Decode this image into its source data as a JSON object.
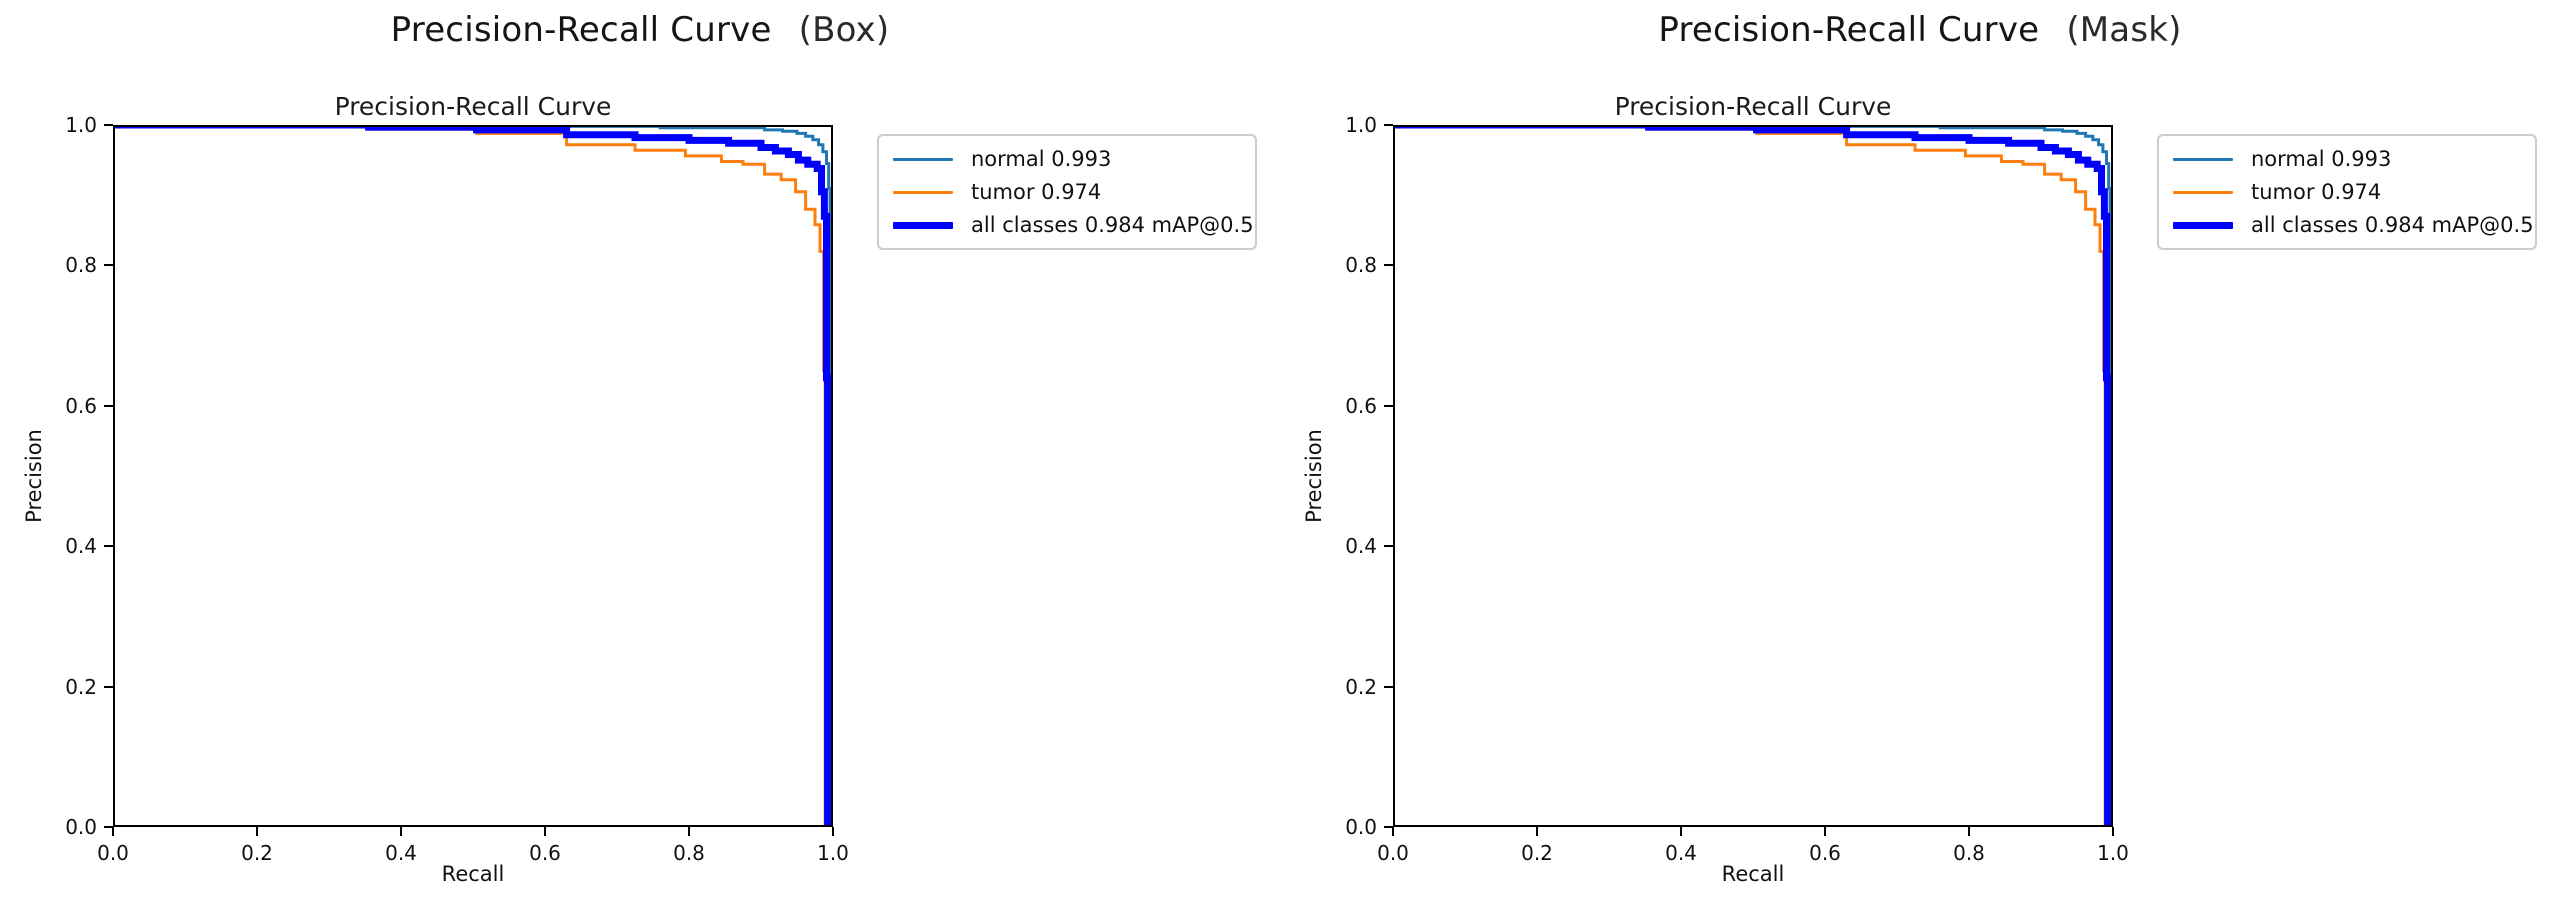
{
  "page": {
    "background": "#ffffff",
    "text_color": "#111111",
    "spine_color": "#000000",
    "legend_border_color": "#cccccc"
  },
  "chart_data": [
    {
      "type": "line",
      "suptitle": "Precision-Recall Curve",
      "variant": "(Box)",
      "title": "Precision-Recall Curve",
      "xlabel": "Recall",
      "ylabel": "Precision",
      "xlim": [
        0.0,
        1.0
      ],
      "ylim": [
        0.0,
        1.0
      ],
      "xticks": [
        "0.0",
        "0.2",
        "0.4",
        "0.6",
        "0.8",
        "1.0"
      ],
      "yticks": [
        "0.0",
        "0.2",
        "0.4",
        "0.6",
        "0.8",
        "1.0"
      ],
      "grid": false,
      "legend_position": "outside-upper-right",
      "series": [
        {
          "name": "normal",
          "legend": "normal 0.993",
          "ap": 0.993,
          "color": "#1f77b4",
          "width": 3,
          "points": [
            [
              0.0,
              1.0
            ],
            [
              0.5,
              1.0
            ],
            [
              0.5,
              0.998
            ],
            [
              0.76,
              0.998
            ],
            [
              0.76,
              0.996
            ],
            [
              0.905,
              0.996
            ],
            [
              0.905,
              0.993
            ],
            [
              0.93,
              0.993
            ],
            [
              0.93,
              0.991
            ],
            [
              0.95,
              0.991
            ],
            [
              0.95,
              0.988
            ],
            [
              0.962,
              0.988
            ],
            [
              0.962,
              0.984
            ],
            [
              0.972,
              0.984
            ],
            [
              0.972,
              0.979
            ],
            [
              0.98,
              0.979
            ],
            [
              0.98,
              0.972
            ],
            [
              0.986,
              0.972
            ],
            [
              0.986,
              0.962
            ],
            [
              0.991,
              0.962
            ],
            [
              0.991,
              0.945
            ],
            [
              0.994,
              0.945
            ],
            [
              0.994,
              0.91
            ],
            [
              0.996,
              0.91
            ],
            [
              0.996,
              0.0
            ]
          ]
        },
        {
          "name": "tumor",
          "legend": "tumor 0.974",
          "ap": 0.974,
          "color": "#ff7f0e",
          "width": 3,
          "points": [
            [
              0.0,
              1.0
            ],
            [
              0.355,
              1.0
            ],
            [
              0.355,
              0.994
            ],
            [
              0.505,
              0.994
            ],
            [
              0.505,
              0.988
            ],
            [
              0.63,
              0.988
            ],
            [
              0.63,
              0.972
            ],
            [
              0.725,
              0.972
            ],
            [
              0.725,
              0.964
            ],
            [
              0.795,
              0.964
            ],
            [
              0.795,
              0.956
            ],
            [
              0.845,
              0.956
            ],
            [
              0.845,
              0.948
            ],
            [
              0.875,
              0.948
            ],
            [
              0.875,
              0.944
            ],
            [
              0.905,
              0.944
            ],
            [
              0.905,
              0.93
            ],
            [
              0.928,
              0.93
            ],
            [
              0.928,
              0.922
            ],
            [
              0.948,
              0.922
            ],
            [
              0.948,
              0.905
            ],
            [
              0.962,
              0.905
            ],
            [
              0.962,
              0.88
            ],
            [
              0.975,
              0.88
            ],
            [
              0.975,
              0.858
            ],
            [
              0.982,
              0.858
            ],
            [
              0.982,
              0.82
            ],
            [
              0.987,
              0.82
            ],
            [
              0.987,
              0.65
            ],
            [
              0.989,
              0.65
            ],
            [
              0.989,
              0.0
            ]
          ]
        },
        {
          "name": "all classes",
          "legend": "all classes 0.984 mAP@0.5",
          "ap": 0.984,
          "map_at": "mAP@0.5",
          "color": "#0000ff",
          "width": 7,
          "points": [
            [
              0.0,
              1.0
            ],
            [
              0.355,
              1.0
            ],
            [
              0.355,
              0.997
            ],
            [
              0.505,
              0.997
            ],
            [
              0.505,
              0.993
            ],
            [
              0.63,
              0.993
            ],
            [
              0.63,
              0.986
            ],
            [
              0.725,
              0.986
            ],
            [
              0.725,
              0.982
            ],
            [
              0.8,
              0.982
            ],
            [
              0.8,
              0.978
            ],
            [
              0.855,
              0.978
            ],
            [
              0.855,
              0.974
            ],
            [
              0.9,
              0.974
            ],
            [
              0.9,
              0.968
            ],
            [
              0.92,
              0.968
            ],
            [
              0.92,
              0.963
            ],
            [
              0.938,
              0.963
            ],
            [
              0.938,
              0.958
            ],
            [
              0.952,
              0.958
            ],
            [
              0.952,
              0.95
            ],
            [
              0.965,
              0.95
            ],
            [
              0.965,
              0.944
            ],
            [
              0.978,
              0.944
            ],
            [
              0.978,
              0.938
            ],
            [
              0.984,
              0.938
            ],
            [
              0.984,
              0.905
            ],
            [
              0.988,
              0.905
            ],
            [
              0.988,
              0.87
            ],
            [
              0.991,
              0.87
            ],
            [
              0.991,
              0.64
            ],
            [
              0.9925,
              0.64
            ],
            [
              0.9925,
              0.0
            ]
          ]
        }
      ]
    },
    {
      "type": "line",
      "suptitle": "Precision-Recall Curve",
      "variant": "(Mask)",
      "title": "Precision-Recall Curve",
      "xlabel": "Recall",
      "ylabel": "Precision",
      "xlim": [
        0.0,
        1.0
      ],
      "ylim": [
        0.0,
        1.0
      ],
      "xticks": [
        "0.0",
        "0.2",
        "0.4",
        "0.6",
        "0.8",
        "1.0"
      ],
      "yticks": [
        "0.0",
        "0.2",
        "0.4",
        "0.6",
        "0.8",
        "1.0"
      ],
      "grid": false,
      "legend_position": "outside-upper-right",
      "series": [
        {
          "name": "normal",
          "legend": "normal 0.993",
          "ap": 0.993,
          "color": "#1f77b4",
          "width": 3,
          "points": [
            [
              0.0,
              1.0
            ],
            [
              0.5,
              1.0
            ],
            [
              0.5,
              0.998
            ],
            [
              0.76,
              0.998
            ],
            [
              0.76,
              0.996
            ],
            [
              0.905,
              0.996
            ],
            [
              0.905,
              0.993
            ],
            [
              0.93,
              0.993
            ],
            [
              0.93,
              0.991
            ],
            [
              0.95,
              0.991
            ],
            [
              0.95,
              0.988
            ],
            [
              0.962,
              0.988
            ],
            [
              0.962,
              0.984
            ],
            [
              0.972,
              0.984
            ],
            [
              0.972,
              0.979
            ],
            [
              0.98,
              0.979
            ],
            [
              0.98,
              0.972
            ],
            [
              0.986,
              0.972
            ],
            [
              0.986,
              0.962
            ],
            [
              0.991,
              0.962
            ],
            [
              0.991,
              0.945
            ],
            [
              0.994,
              0.945
            ],
            [
              0.994,
              0.91
            ],
            [
              0.996,
              0.91
            ],
            [
              0.996,
              0.0
            ]
          ]
        },
        {
          "name": "tumor",
          "legend": "tumor 0.974",
          "ap": 0.974,
          "color": "#ff7f0e",
          "width": 3,
          "points": [
            [
              0.0,
              1.0
            ],
            [
              0.355,
              1.0
            ],
            [
              0.355,
              0.994
            ],
            [
              0.505,
              0.994
            ],
            [
              0.505,
              0.988
            ],
            [
              0.63,
              0.988
            ],
            [
              0.63,
              0.972
            ],
            [
              0.725,
              0.972
            ],
            [
              0.725,
              0.964
            ],
            [
              0.795,
              0.964
            ],
            [
              0.795,
              0.956
            ],
            [
              0.845,
              0.956
            ],
            [
              0.845,
              0.948
            ],
            [
              0.875,
              0.948
            ],
            [
              0.875,
              0.944
            ],
            [
              0.905,
              0.944
            ],
            [
              0.905,
              0.93
            ],
            [
              0.928,
              0.93
            ],
            [
              0.928,
              0.922
            ],
            [
              0.948,
              0.922
            ],
            [
              0.948,
              0.905
            ],
            [
              0.962,
              0.905
            ],
            [
              0.962,
              0.88
            ],
            [
              0.975,
              0.88
            ],
            [
              0.975,
              0.858
            ],
            [
              0.982,
              0.858
            ],
            [
              0.982,
              0.82
            ],
            [
              0.987,
              0.82
            ],
            [
              0.987,
              0.65
            ],
            [
              0.989,
              0.65
            ],
            [
              0.989,
              0.0
            ]
          ]
        },
        {
          "name": "all classes",
          "legend": "all classes 0.984 mAP@0.5",
          "ap": 0.984,
          "map_at": "mAP@0.5",
          "color": "#0000ff",
          "width": 7,
          "points": [
            [
              0.0,
              1.0
            ],
            [
              0.355,
              1.0
            ],
            [
              0.355,
              0.997
            ],
            [
              0.505,
              0.997
            ],
            [
              0.505,
              0.993
            ],
            [
              0.63,
              0.993
            ],
            [
              0.63,
              0.986
            ],
            [
              0.725,
              0.986
            ],
            [
              0.725,
              0.982
            ],
            [
              0.8,
              0.982
            ],
            [
              0.8,
              0.978
            ],
            [
              0.855,
              0.978
            ],
            [
              0.855,
              0.974
            ],
            [
              0.9,
              0.974
            ],
            [
              0.9,
              0.968
            ],
            [
              0.92,
              0.968
            ],
            [
              0.92,
              0.963
            ],
            [
              0.938,
              0.963
            ],
            [
              0.938,
              0.958
            ],
            [
              0.952,
              0.958
            ],
            [
              0.952,
              0.95
            ],
            [
              0.965,
              0.95
            ],
            [
              0.965,
              0.944
            ],
            [
              0.978,
              0.944
            ],
            [
              0.978,
              0.938
            ],
            [
              0.984,
              0.938
            ],
            [
              0.984,
              0.905
            ],
            [
              0.988,
              0.905
            ],
            [
              0.988,
              0.87
            ],
            [
              0.991,
              0.87
            ],
            [
              0.991,
              0.64
            ],
            [
              0.9925,
              0.64
            ],
            [
              0.9925,
              0.0
            ]
          ]
        }
      ]
    }
  ]
}
